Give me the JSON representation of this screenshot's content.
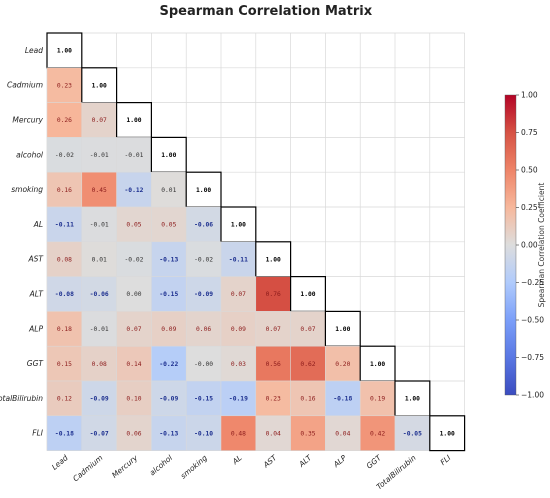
{
  "chart_data": {
    "type": "heatmap",
    "title": "Spearman Correlation Matrix",
    "labels": [
      "Lead",
      "Cadmium",
      "Mercury",
      "alcohol",
      "smoking",
      "AL",
      "AST",
      "ALT",
      "ALP",
      "GGT",
      "TotalBilirubin",
      "FLI"
    ],
    "values": [
      [
        1.0
      ],
      [
        0.23,
        1.0
      ],
      [
        0.26,
        0.07,
        1.0
      ],
      [
        -0.02,
        -0.01,
        -0.01,
        1.0
      ],
      [
        0.16,
        0.45,
        -0.12,
        0.01,
        1.0
      ],
      [
        -0.11,
        -0.01,
        0.05,
        0.05,
        -0.06,
        1.0
      ],
      [
        0.08,
        0.01,
        -0.02,
        -0.13,
        -0.02,
        -0.11,
        1.0
      ],
      [
        -0.08,
        -0.06,
        0.0,
        -0.15,
        -0.09,
        0.07,
        0.76,
        1.0
      ],
      [
        0.18,
        -0.01,
        0.07,
        0.09,
        0.06,
        0.09,
        0.07,
        0.07,
        1.0
      ],
      [
        0.15,
        0.08,
        0.14,
        -0.22,
        -0.0,
        0.03,
        0.56,
        0.62,
        0.2,
        1.0
      ],
      [
        0.12,
        -0.09,
        0.1,
        -0.09,
        -0.15,
        -0.19,
        0.23,
        0.16,
        -0.18,
        0.19,
        1.0
      ],
      [
        -0.18,
        -0.07,
        0.06,
        -0.13,
        -0.1,
        0.48,
        0.04,
        0.35,
        0.04,
        0.42,
        -0.05,
        1.0
      ]
    ],
    "display_values": [
      [
        "1.00"
      ],
      [
        "0.23",
        "1.00"
      ],
      [
        "0.26",
        "0.07",
        "1.00"
      ],
      [
        "-0.02",
        "-0.01",
        "-0.01",
        "1.00"
      ],
      [
        "0.16",
        "0.45",
        "-0.12",
        "0.01",
        "1.00"
      ],
      [
        "-0.11",
        "-0.01",
        "0.05",
        "0.05",
        "-0.06",
        "1.00"
      ],
      [
        "0.08",
        "0.01",
        "-0.02",
        "-0.13",
        "-0.02",
        "-0.11",
        "1.00"
      ],
      [
        "-0.08",
        "-0.06",
        "0.00",
        "-0.15",
        "-0.09",
        "0.07",
        "0.76",
        "1.00"
      ],
      [
        "0.18",
        "-0.01",
        "0.07",
        "0.09",
        "0.06",
        "0.09",
        "0.07",
        "0.07",
        "1.00"
      ],
      [
        "0.15",
        "0.08",
        "0.14",
        "-0.22",
        "-0.00",
        "0.03",
        "0.56",
        "0.62",
        "0.20",
        "1.00"
      ],
      [
        "0.12",
        "-0.09",
        "0.10",
        "-0.09",
        "-0.15",
        "-0.19",
        "0.23",
        "0.16",
        "-0.18",
        "0.19",
        "1.00"
      ],
      [
        "-0.18",
        "-0.07",
        "0.06",
        "-0.13",
        "-0.10",
        "0.48",
        "0.04",
        "0.35",
        "0.04",
        "0.42",
        "-0.05",
        "1.00"
      ]
    ],
    "mask": "lower-triangle",
    "colorscale": "coolwarm",
    "vmin": -1.0,
    "vmax": 1.0,
    "colorbar": {
      "label": "Spearman Correlation Coefficient",
      "ticks": [
        "1.00",
        "0.75",
        "0.50",
        "0.25",
        "0.00",
        "−0.25",
        "−0.50",
        "−0.75",
        "−1.00"
      ]
    },
    "grid": true,
    "diagonal_outlined": true,
    "colors": {
      "neg_end": "#3b4cc0",
      "neutral": "#dddddd",
      "pos_end": "#b40426",
      "grid": "#d9d9d9",
      "outline": "#000000"
    }
  }
}
